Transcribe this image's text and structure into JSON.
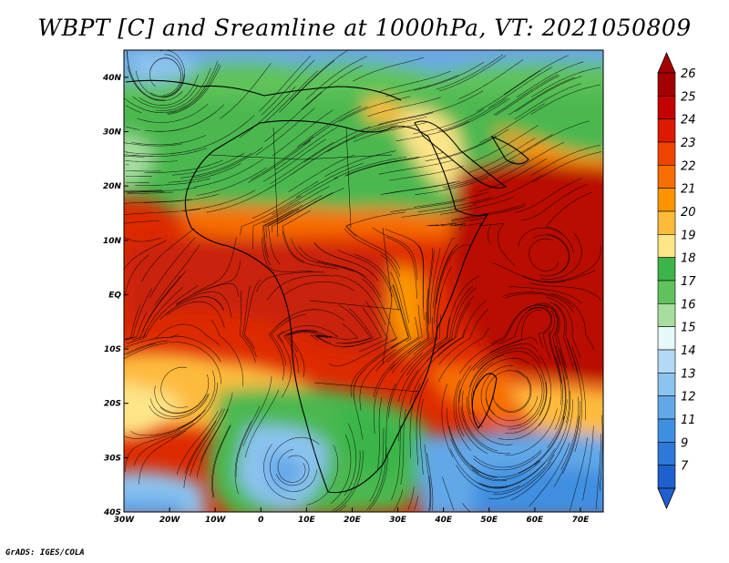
{
  "title": "WBPT [C] and Sreamline at 1000hPa, VT: 2021050809",
  "credit": "GrADS: IGES/COLA",
  "map": {
    "lon_range": [
      -30,
      75
    ],
    "lat_range": [
      -40,
      45
    ],
    "x_ticks": [
      {
        "value": -30,
        "label": "30W"
      },
      {
        "value": -20,
        "label": "20W"
      },
      {
        "value": -10,
        "label": "10W"
      },
      {
        "value": 0,
        "label": "0"
      },
      {
        "value": 10,
        "label": "10E"
      },
      {
        "value": 20,
        "label": "20E"
      },
      {
        "value": 30,
        "label": "30E"
      },
      {
        "value": 40,
        "label": "40E"
      },
      {
        "value": 50,
        "label": "50E"
      },
      {
        "value": 60,
        "label": "60E"
      },
      {
        "value": 70,
        "label": "70E"
      }
    ],
    "y_ticks": [
      {
        "value": 40,
        "label": "40N"
      },
      {
        "value": 30,
        "label": "30N"
      },
      {
        "value": 20,
        "label": "20N"
      },
      {
        "value": 10,
        "label": "10N"
      },
      {
        "value": 0,
        "label": "EQ"
      },
      {
        "value": -10,
        "label": "10S"
      },
      {
        "value": -20,
        "label": "20S"
      },
      {
        "value": -30,
        "label": "30S"
      },
      {
        "value": -40,
        "label": "40S"
      }
    ]
  },
  "colorbar": {
    "levels": [
      {
        "label": "26",
        "color": "#a50000"
      },
      {
        "label": "25",
        "color": "#c40000"
      },
      {
        "label": "24",
        "color": "#dd1a00"
      },
      {
        "label": "23",
        "color": "#ee4400"
      },
      {
        "label": "22",
        "color": "#f76e00"
      },
      {
        "label": "21",
        "color": "#fb9400"
      },
      {
        "label": "20",
        "color": "#fdbb3c"
      },
      {
        "label": "19",
        "color": "#fde588"
      },
      {
        "label": "18",
        "color": "#3bb54a"
      },
      {
        "label": "17",
        "color": "#5fc25a"
      },
      {
        "label": "16",
        "color": "#a6dea0"
      },
      {
        "label": "15",
        "color": "#e6f8f8"
      },
      {
        "label": "14",
        "color": "#b4d9f4"
      },
      {
        "label": "13",
        "color": "#8cc3ef"
      },
      {
        "label": "12",
        "color": "#62a8e8"
      },
      {
        "label": "11",
        "color": "#3f8fe0"
      },
      {
        "label": "9",
        "color": "#2e78d8"
      },
      {
        "label": "7",
        "color": "#1f60cf"
      }
    ]
  }
}
